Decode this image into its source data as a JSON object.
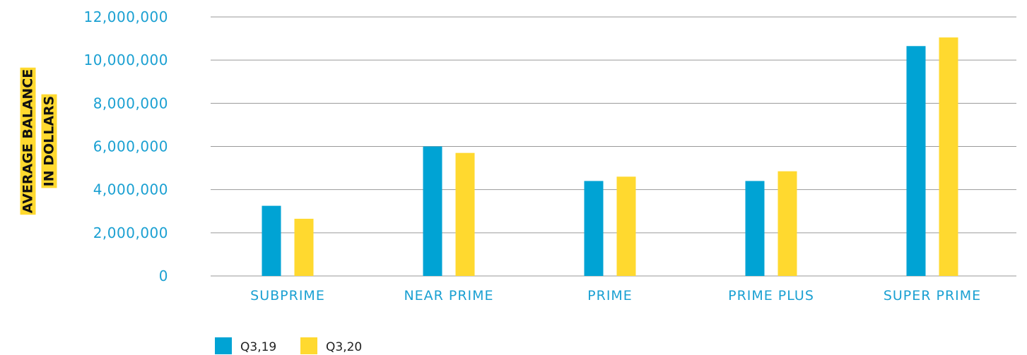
{
  "chart_data": {
    "type": "bar",
    "title": "",
    "xlabel": "",
    "ylabel_lines": [
      "AVERAGE BALANCE",
      "IN DOLLARS"
    ],
    "categories": [
      "SUBPRIME",
      "NEAR PRIME",
      "PRIME",
      "PRIME PLUS",
      "SUPER PRIME"
    ],
    "series": [
      {
        "name": "Q3,19",
        "color": "#00a3d4",
        "values": [
          3250000,
          6000000,
          4400000,
          4400000,
          10650000
        ]
      },
      {
        "name": "Q3,20",
        "color": "#ffd92f",
        "values": [
          2650000,
          5700000,
          4600000,
          4850000,
          11050000
        ]
      }
    ],
    "ylim": [
      0,
      12000000
    ],
    "yticks": [
      {
        "value": 0,
        "label": "0"
      },
      {
        "value": 2000000,
        "label": "2,000,000"
      },
      {
        "value": 4000000,
        "label": "4,000,000"
      },
      {
        "value": 6000000,
        "label": "6,000,000"
      },
      {
        "value": 8000000,
        "label": "8,000,000"
      },
      {
        "value": 10000000,
        "label": "10,000,000"
      },
      {
        "value": 12000000,
        "label": "12,000,000"
      }
    ],
    "grid": true,
    "legend_position": "bottom-left",
    "colors": {
      "tick_text": "#1aa0d2",
      "ylabel_highlight": "#ffd92f",
      "grid": "#9a9a9a"
    }
  }
}
